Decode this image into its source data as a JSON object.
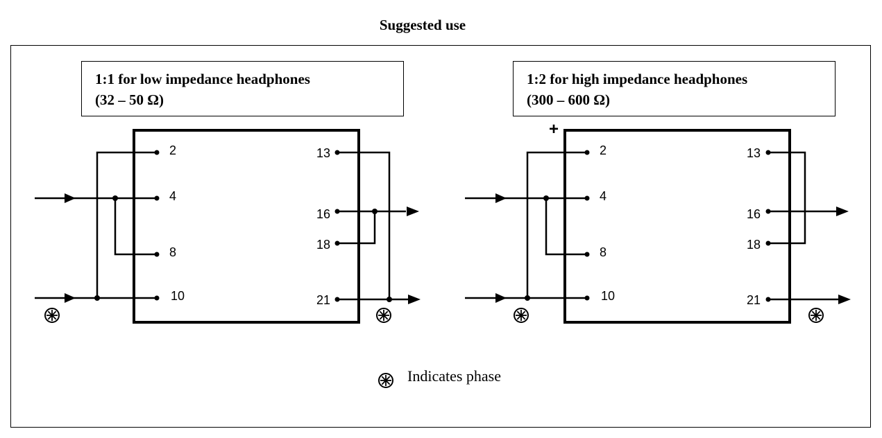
{
  "title": "Suggested use",
  "configs": [
    {
      "label_line1": "1:1 for low impedance headphones",
      "label_line2": "(32 – 50 Ω)",
      "primary_pins": [
        "2",
        "4",
        "8",
        "10"
      ],
      "secondary_pins": [
        "13",
        "16",
        "18",
        "21"
      ]
    },
    {
      "label_line1": "1:2 for high impedance headphones",
      "label_line2": "(300 – 600 Ω)",
      "polarity_mark": "+",
      "primary_pins": [
        "2",
        "4",
        "8",
        "10"
      ],
      "secondary_pins": [
        "13",
        "16",
        "18",
        "21"
      ]
    }
  ],
  "legend": {
    "symbol_icon": "phase-asterisk-icon",
    "text": "Indicates phase"
  }
}
